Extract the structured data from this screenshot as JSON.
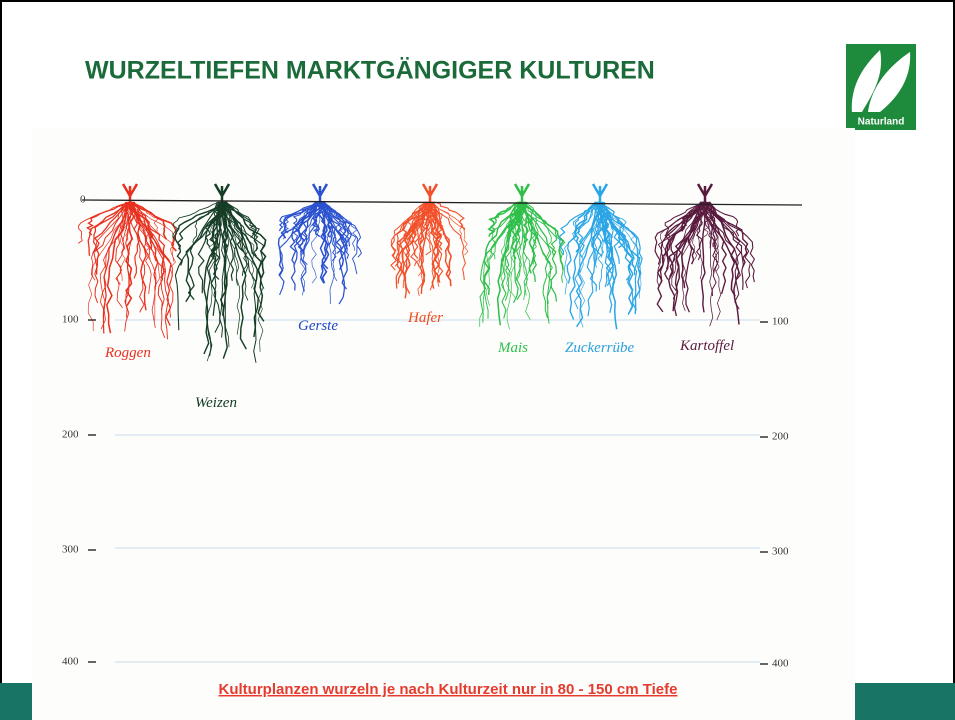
{
  "header": {
    "title": "WURZELTIEFEN MARKTGÄNGIGER KULTUREN",
    "logo": "Naturland"
  },
  "diagram": {
    "left_scale": [
      "0",
      "100",
      "200",
      "300",
      "400"
    ],
    "right_scale": [
      "100",
      "200",
      "300",
      "400"
    ],
    "crops": [
      "Roggen",
      "Weizen",
      "Gerste",
      "Hafer",
      "Mais",
      "Zuckerrübe",
      "Kartoffel"
    ]
  },
  "footer": {
    "note": "Kulturplanzen wurzeln je nach Kulturzeit nur in 80 - 150 cm Tiefe"
  }
}
